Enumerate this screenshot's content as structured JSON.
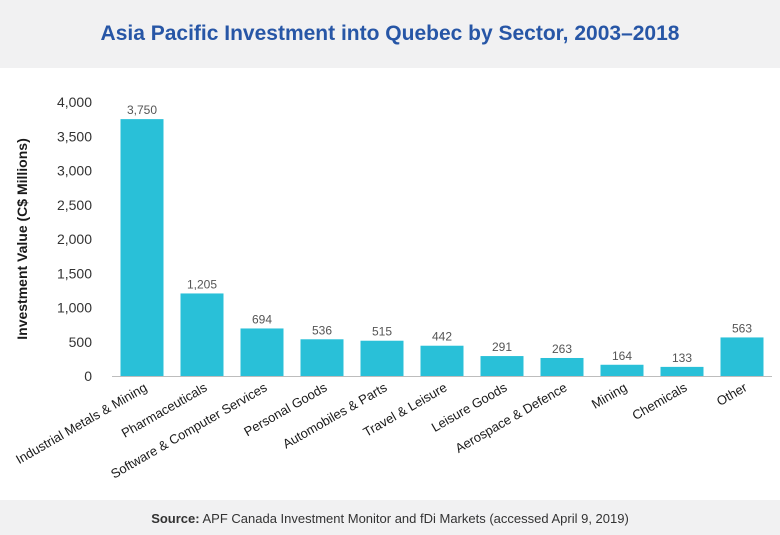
{
  "chart_data": {
    "type": "bar",
    "title": "Asia Pacific Investment into Quebec by Sector, 2003–2018",
    "ylabel": "Investment Value (C$ Millions)",
    "xlabel": "",
    "ylim": [
      0,
      4000
    ],
    "yticks": [
      0,
      500,
      1000,
      1500,
      2000,
      2500,
      3000,
      3500,
      4000
    ],
    "ytick_labels": [
      "0",
      "500",
      "1,000",
      "1,500",
      "2,000",
      "2,500",
      "3,000",
      "3,500",
      "4,000"
    ],
    "categories": [
      "Industrial Metals & Mining",
      "Pharmaceuticals",
      "Software & Computer Services",
      "Personal Goods",
      "Automobiles & Parts",
      "Travel & Leisure",
      "Leisure Goods",
      "Aerospace & Defence",
      "Mining",
      "Chemicals",
      "Other"
    ],
    "values": [
      3750,
      1205,
      694,
      536,
      515,
      442,
      291,
      263,
      164,
      133,
      563
    ],
    "value_labels": [
      "3,750",
      "1,205",
      "694",
      "536",
      "515",
      "442",
      "291",
      "263",
      "164",
      "133",
      "563"
    ],
    "bar_color": "#29c0d8",
    "grid": false,
    "legend": "none"
  },
  "source": {
    "label": "Source:",
    "text": "APF Canada Investment Monitor and fDi Markets (accessed April 9, 2019)"
  },
  "colors": {
    "title": "#2756a6",
    "band": "#f1f1f2"
  }
}
